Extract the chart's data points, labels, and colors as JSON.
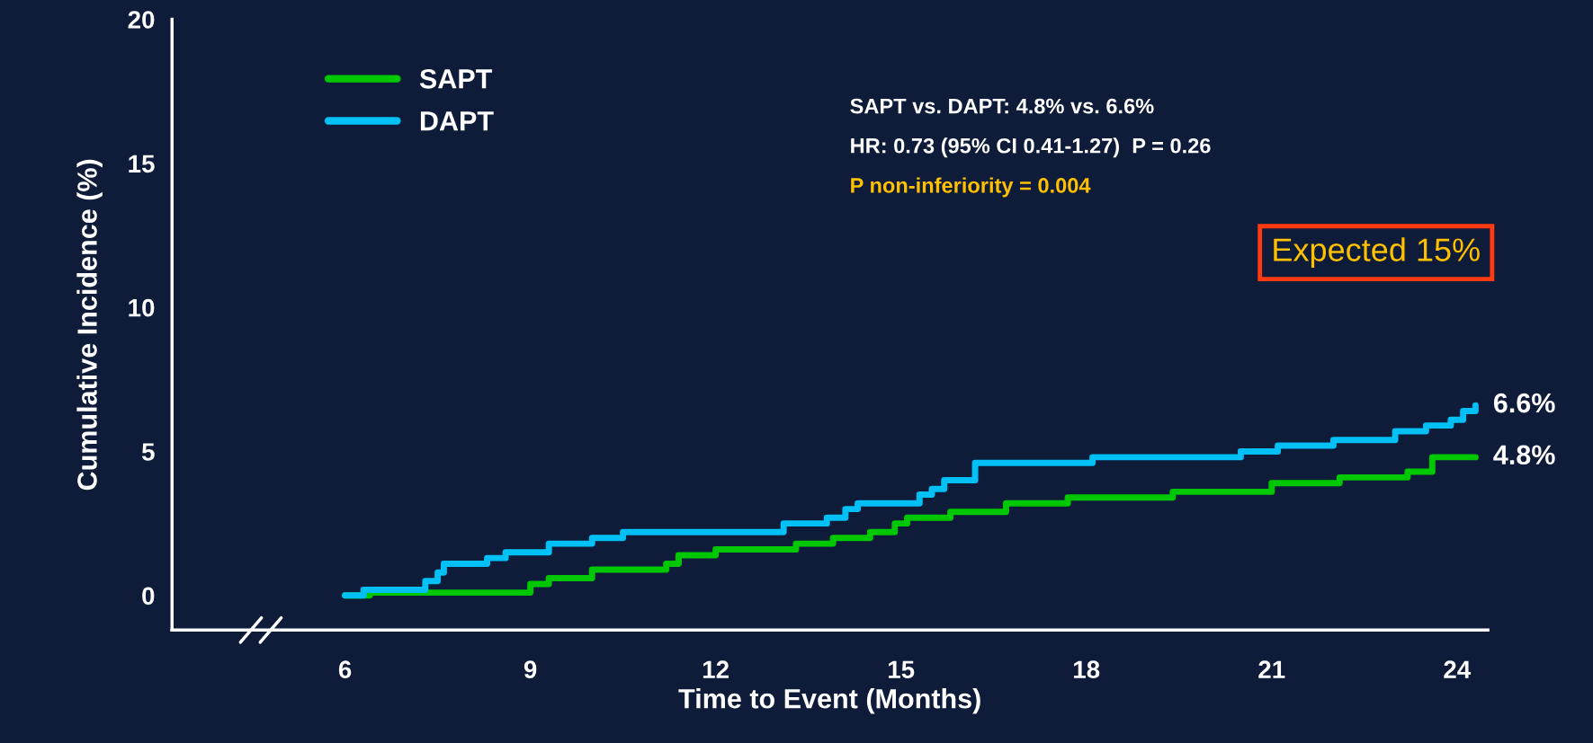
{
  "chart_data": {
    "type": "step",
    "xlabel": "Time to Event (Months)",
    "ylabel": "Cumulative Incidence (%)",
    "xlim": [
      3.2,
      24.5
    ],
    "xticks": [
      6,
      9,
      12,
      15,
      18,
      21,
      24
    ],
    "ylim": [
      -1.2,
      20
    ],
    "yticks": [
      0,
      5,
      10,
      15,
      20
    ],
    "grid": false,
    "legend": "top left",
    "line_style": "solid",
    "marker": "none",
    "series": [
      {
        "name": "SAPT",
        "color": "#00c800",
        "x": [
          6.0,
          6.4,
          9.0,
          9.3,
          10.0,
          11.2,
          11.4,
          12.0,
          13.3,
          13.9,
          14.5,
          14.9,
          15.1,
          15.8,
          16.7,
          17.7,
          19.4,
          21.0,
          22.1,
          23.2,
          23.6,
          24.3
        ],
        "values": [
          0,
          0.1,
          0.4,
          0.6,
          0.9,
          1.1,
          1.4,
          1.6,
          1.8,
          2.0,
          2.2,
          2.5,
          2.7,
          2.9,
          3.2,
          3.4,
          3.6,
          3.9,
          4.1,
          4.3,
          4.8,
          4.8
        ]
      },
      {
        "name": "DAPT",
        "color": "#00c0f5",
        "x": [
          6.0,
          6.3,
          7.3,
          7.5,
          7.6,
          8.3,
          8.6,
          9.3,
          10.0,
          10.5,
          13.1,
          13.8,
          14.1,
          14.3,
          15.3,
          15.5,
          15.7,
          16.2,
          18.1,
          20.5,
          21.1,
          22.0,
          23.0,
          23.5,
          23.9,
          24.1,
          24.3
        ],
        "values": [
          0,
          0.2,
          0.5,
          0.8,
          1.1,
          1.3,
          1.5,
          1.8,
          2.0,
          2.2,
          2.5,
          2.7,
          3.0,
          3.2,
          3.5,
          3.7,
          4.0,
          4.6,
          4.8,
          5.0,
          5.2,
          5.4,
          5.7,
          5.9,
          6.1,
          6.4,
          6.6
        ]
      }
    ],
    "annotations": [
      {
        "text": "6.6%",
        "x": 24.3,
        "y": 6.6
      },
      {
        "text": "4.8%",
        "x": 24.3,
        "y": 4.8
      },
      "SAPT vs. DAPT: 4.8% vs. 6.6%",
      "HR: 0.73 (95% CI 0.41-1.27)  P = 0.26",
      "P non-inferiority = 0.004",
      "Expected 15%"
    ]
  }
}
